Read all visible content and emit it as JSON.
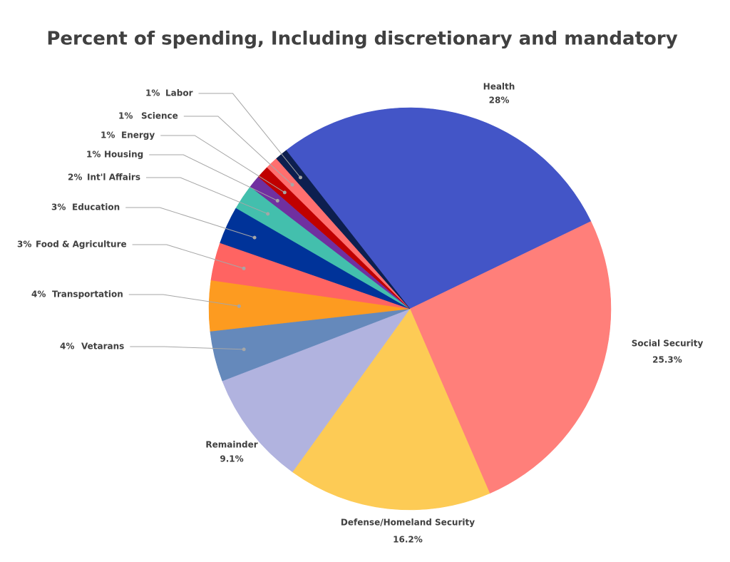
{
  "chart_data": {
    "type": "pie",
    "title": "Percent of spending, Including discretionary and mandatory",
    "categories": [
      "Health",
      "Social Security",
      "Defense/Homeland Security",
      "Remainder",
      "Vetarans",
      "Transportation",
      "Food & Agriculture",
      "Education",
      "Int'l Affairs",
      "Housing",
      "Energy",
      "Science",
      "Labor"
    ],
    "values": [
      28,
      25.3,
      16.2,
      9.1,
      4,
      4,
      3,
      3,
      2,
      1,
      1,
      1,
      1
    ],
    "value_labels": [
      "28%",
      "25.3%",
      "16.2%",
      "9.1%",
      "4%",
      "4%",
      "3%",
      "3%",
      "2%",
      "1%",
      "1%",
      "1%",
      "1%"
    ],
    "colors": [
      "#4355c7",
      "#ff7f7a",
      "#fdcb55",
      "#b1b3df",
      "#6589bb",
      "#fd9b20",
      "#ff6462",
      "#003399",
      "#43bfad",
      "#7030a0",
      "#c00000",
      "#ff6f6f",
      "#0d1f4f"
    ]
  }
}
